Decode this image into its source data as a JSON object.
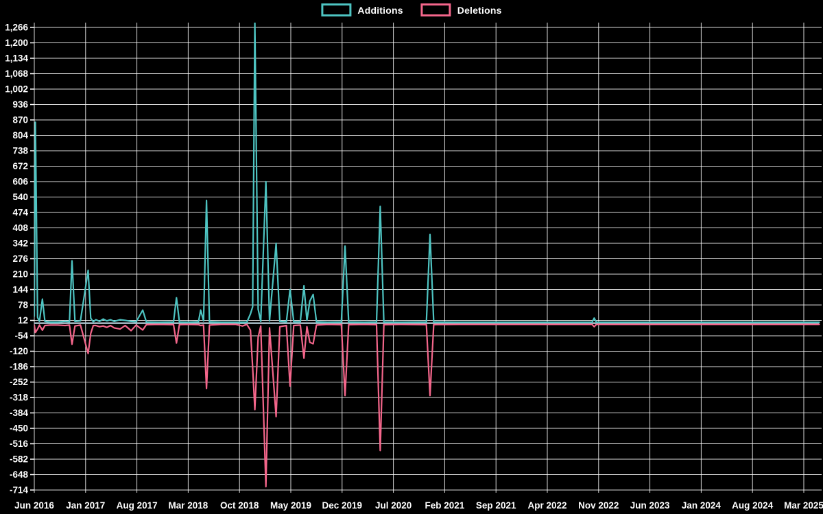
{
  "chart_data": {
    "type": "line",
    "title": "",
    "legend_position": "top-center",
    "grid": true,
    "background_color": "#000000",
    "text_color": "#ffffff",
    "grid_color": "#ffffff",
    "zero_line_color": "#a9bfc9",
    "y_axis": {
      "min": -714,
      "max": 1266,
      "step": 66,
      "tick_format": "thousands-comma"
    },
    "x_axis": {
      "tick_labels": [
        "Jun 2016",
        "Jan 2017",
        "Aug 2017",
        "Mar 2018",
        "Oct 2018",
        "May 2019",
        "Dec 2019",
        "Jul 2020",
        "Feb 2021",
        "Sep 2021",
        "Apr 2022",
        "Nov 2022",
        "Jun 2023",
        "Jan 2024",
        "Aug 2024",
        "Mar 2025"
      ],
      "months_per_tick": 7,
      "end_month": 107.1
    },
    "series": [
      {
        "name": "Additions",
        "color": "#4ec4c2",
        "points": [
          [
            0,
            30
          ],
          [
            0.15,
            860
          ],
          [
            0.45,
            25
          ],
          [
            0.7,
            8
          ],
          [
            1.1,
            103
          ],
          [
            1.45,
            8
          ],
          [
            2.2,
            5
          ],
          [
            3.2,
            5
          ],
          [
            4.2,
            8
          ],
          [
            4.8,
            6
          ],
          [
            5.15,
            267
          ],
          [
            5.55,
            8
          ],
          [
            6.3,
            10
          ],
          [
            7.35,
            226
          ],
          [
            7.7,
            21
          ],
          [
            8.05,
            6
          ],
          [
            8.4,
            15
          ],
          [
            8.9,
            8
          ],
          [
            9.4,
            18
          ],
          [
            9.9,
            10
          ],
          [
            10.4,
            15
          ],
          [
            10.9,
            8
          ],
          [
            11.7,
            15
          ],
          [
            12.4,
            12
          ],
          [
            13.2,
            8
          ],
          [
            13.9,
            6
          ],
          [
            14.8,
            56
          ],
          [
            15.3,
            5
          ],
          [
            17,
            4
          ],
          [
            19,
            5
          ],
          [
            19.4,
            109
          ],
          [
            19.8,
            5
          ],
          [
            21,
            4
          ],
          [
            22.4,
            6
          ],
          [
            22.7,
            56
          ],
          [
            23.1,
            10
          ],
          [
            23.5,
            525
          ],
          [
            23.9,
            6
          ],
          [
            25.5,
            4
          ],
          [
            27.5,
            4
          ],
          [
            28.4,
            4
          ],
          [
            29,
            4
          ],
          [
            29.5,
            40
          ],
          [
            29.8,
            70
          ],
          [
            30.1,
            1290
          ],
          [
            30.55,
            60
          ],
          [
            30.9,
            8
          ],
          [
            31.6,
            606
          ],
          [
            32.1,
            10
          ],
          [
            33,
            342
          ],
          [
            33.5,
            8
          ],
          [
            34.4,
            6
          ],
          [
            34.9,
            144
          ],
          [
            35.4,
            6
          ],
          [
            36.3,
            6
          ],
          [
            36.8,
            160
          ],
          [
            37.2,
            12
          ],
          [
            37.6,
            95
          ],
          [
            38.05,
            123
          ],
          [
            38.5,
            6
          ],
          [
            40,
            4
          ],
          [
            41.9,
            5
          ],
          [
            42.4,
            330
          ],
          [
            42.9,
            5
          ],
          [
            45,
            4
          ],
          [
            46.7,
            5
          ],
          [
            47.2,
            500
          ],
          [
            47.7,
            5
          ],
          [
            50,
            4
          ],
          [
            53.5,
            5
          ],
          [
            54,
            380
          ],
          [
            54.5,
            5
          ],
          [
            58,
            4
          ],
          [
            65,
            4
          ],
          [
            72,
            4
          ],
          [
            76.1,
            4
          ],
          [
            76.4,
            22
          ],
          [
            76.7,
            4
          ],
          [
            85,
            4
          ],
          [
            95,
            4
          ],
          [
            107.1,
            4
          ]
        ]
      },
      {
        "name": "Deletions",
        "color": "#f4668b",
        "points": [
          [
            0,
            -8
          ],
          [
            0.15,
            -40
          ],
          [
            0.45,
            -25
          ],
          [
            0.7,
            -8
          ],
          [
            1.1,
            -30
          ],
          [
            1.45,
            -10
          ],
          [
            2.2,
            -8
          ],
          [
            3.2,
            -8
          ],
          [
            4.2,
            -10
          ],
          [
            4.8,
            -8
          ],
          [
            5.15,
            -90
          ],
          [
            5.55,
            -12
          ],
          [
            6.3,
            -8
          ],
          [
            7.35,
            -130
          ],
          [
            7.7,
            -44
          ],
          [
            8.05,
            -10
          ],
          [
            8.4,
            -10
          ],
          [
            8.9,
            -15
          ],
          [
            9.4,
            -12
          ],
          [
            9.9,
            -18
          ],
          [
            10.4,
            -10
          ],
          [
            10.9,
            -20
          ],
          [
            11.7,
            -25
          ],
          [
            12.4,
            -10
          ],
          [
            13.2,
            -32
          ],
          [
            13.9,
            -8
          ],
          [
            14.8,
            -29
          ],
          [
            15.3,
            -6
          ],
          [
            17,
            -5
          ],
          [
            19,
            -6
          ],
          [
            19.4,
            -85
          ],
          [
            19.8,
            -6
          ],
          [
            21,
            -5
          ],
          [
            22.4,
            -6
          ],
          [
            22.7,
            -10
          ],
          [
            23.1,
            -8
          ],
          [
            23.5,
            -280
          ],
          [
            23.9,
            -8
          ],
          [
            25.5,
            -5
          ],
          [
            27.5,
            -5
          ],
          [
            28.4,
            -12
          ],
          [
            29,
            -5
          ],
          [
            29.5,
            -30
          ],
          [
            29.8,
            -190
          ],
          [
            30.1,
            -370
          ],
          [
            30.55,
            -60
          ],
          [
            30.9,
            -12
          ],
          [
            31.6,
            -700
          ],
          [
            32.1,
            -20
          ],
          [
            33,
            -400
          ],
          [
            33.5,
            -15
          ],
          [
            34.4,
            -10
          ],
          [
            34.9,
            -270
          ],
          [
            35.4,
            -10
          ],
          [
            36.3,
            -8
          ],
          [
            36.8,
            -150
          ],
          [
            37.2,
            -15
          ],
          [
            37.6,
            -82
          ],
          [
            38.05,
            -88
          ],
          [
            38.5,
            -8
          ],
          [
            40,
            -5
          ],
          [
            41.9,
            -6
          ],
          [
            42.4,
            -310
          ],
          [
            42.9,
            -6
          ],
          [
            45,
            -5
          ],
          [
            46.7,
            -6
          ],
          [
            47.2,
            -545
          ],
          [
            47.7,
            -6
          ],
          [
            50,
            -5
          ],
          [
            53.5,
            -6
          ],
          [
            54,
            -310
          ],
          [
            54.5,
            -6
          ],
          [
            58,
            -5
          ],
          [
            65,
            -5
          ],
          [
            72,
            -5
          ],
          [
            76.1,
            -5
          ],
          [
            76.4,
            -15
          ],
          [
            76.7,
            -5
          ],
          [
            85,
            -5
          ],
          [
            95,
            -5
          ],
          [
            107.1,
            -5
          ]
        ]
      }
    ]
  }
}
